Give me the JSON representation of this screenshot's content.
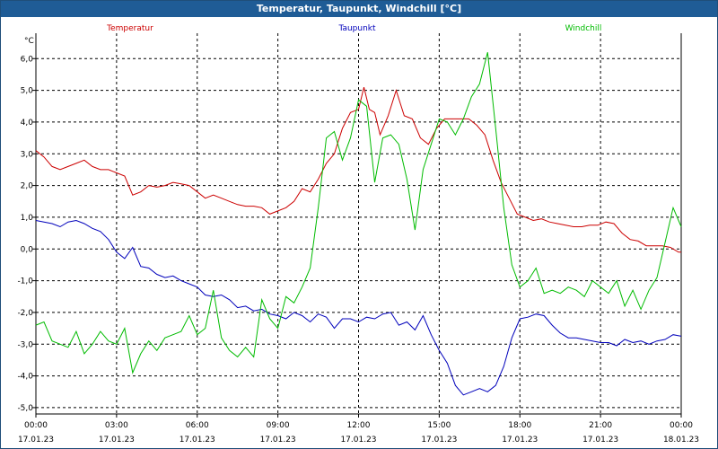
{
  "window": {
    "title": "Temperatur, Taupunkt, Windchill [°C]"
  },
  "chart_data": {
    "type": "line",
    "title": "Temperatur, Taupunkt, Windchill [°C]",
    "ylabel": "°C",
    "xlabel": "",
    "ylim": [
      -5.2,
      6.8
    ],
    "xlim": [
      0,
      24
    ],
    "grid": true,
    "y_ticks": [
      6,
      5,
      4,
      3,
      2,
      1,
      0,
      -1,
      -2,
      -3,
      -4,
      -5
    ],
    "y_tick_labels": [
      "6,0",
      "5,0",
      "4,0",
      "3,0",
      "2,0",
      "1,0",
      "0,0",
      "-1,0",
      "-2,0",
      "-3,0",
      "-4,0",
      "-5,0"
    ],
    "x_ticks": [
      0,
      3,
      6,
      9,
      12,
      15,
      18,
      21,
      24
    ],
    "x_tick_times": [
      "00:00",
      "03:00",
      "06:00",
      "09:00",
      "12:00",
      "15:00",
      "18:00",
      "21:00",
      "00:00"
    ],
    "x_tick_dates": [
      "17.01.23",
      "17.01.23",
      "17.01.23",
      "17.01.23",
      "17.01.23",
      "17.01.23",
      "17.01.23",
      "17.01.23",
      "18.01.23"
    ],
    "series": [
      {
        "name": "Temperatur",
        "color": "#cc0000",
        "x": [
          0,
          0.3,
          0.6,
          0.9,
          1.2,
          1.5,
          1.8,
          2.1,
          2.4,
          2.7,
          3.0,
          3.3,
          3.6,
          3.9,
          4.2,
          4.5,
          4.8,
          5.1,
          5.4,
          5.7,
          6.0,
          6.3,
          6.6,
          6.9,
          7.2,
          7.5,
          7.8,
          8.1,
          8.4,
          8.7,
          9.0,
          9.3,
          9.6,
          9.9,
          10.2,
          10.5,
          10.8,
          11.1,
          11.4,
          11.7,
          12.0,
          12.2,
          12.4,
          12.6,
          12.8,
          13.1,
          13.4,
          13.7,
          14.0,
          14.3,
          14.6,
          14.9,
          15.2,
          15.5,
          15.8,
          16.1,
          16.4,
          16.7,
          17.0,
          17.3,
          17.6,
          17.9,
          18.2,
          18.5,
          18.8,
          19.1,
          19.4,
          19.7,
          20.0,
          20.3,
          20.6,
          20.9,
          21.2,
          21.5,
          21.8,
          22.1,
          22.4,
          22.7,
          23.0,
          23.3,
          23.6,
          23.9,
          24.0
        ],
        "values": [
          3.1,
          2.9,
          2.6,
          2.5,
          2.6,
          2.7,
          2.8,
          2.6,
          2.5,
          2.5,
          2.4,
          2.3,
          1.7,
          1.8,
          2.0,
          1.95,
          2.0,
          2.1,
          2.05,
          2.0,
          1.8,
          1.6,
          1.7,
          1.6,
          1.5,
          1.4,
          1.35,
          1.35,
          1.3,
          1.1,
          1.2,
          1.3,
          1.5,
          1.9,
          1.8,
          2.2,
          2.7,
          3.0,
          3.8,
          4.3,
          4.4,
          5.1,
          4.4,
          4.3,
          3.6,
          4.2,
          5.0,
          4.2,
          4.1,
          3.5,
          3.3,
          3.8,
          4.1,
          4.1,
          4.1,
          4.1,
          3.9,
          3.6,
          2.8,
          2.1,
          1.6,
          1.1,
          1.0,
          0.9,
          0.95,
          0.85,
          0.8,
          0.75,
          0.7,
          0.7,
          0.75,
          0.75,
          0.85,
          0.8,
          0.5,
          0.3,
          0.25,
          0.1,
          0.1,
          0.1,
          0.05,
          -0.1,
          -0.1
        ]
      },
      {
        "name": "Taupunkt",
        "color": "#0000bb",
        "x": [
          0,
          0.3,
          0.6,
          0.9,
          1.2,
          1.5,
          1.8,
          2.1,
          2.4,
          2.7,
          3.0,
          3.3,
          3.6,
          3.9,
          4.2,
          4.5,
          4.8,
          5.1,
          5.4,
          5.7,
          6.0,
          6.3,
          6.6,
          6.9,
          7.2,
          7.5,
          7.8,
          8.1,
          8.4,
          8.7,
          9.0,
          9.3,
          9.6,
          9.9,
          10.2,
          10.5,
          10.8,
          11.1,
          11.4,
          11.7,
          12.0,
          12.3,
          12.6,
          12.9,
          13.2,
          13.5,
          13.8,
          14.1,
          14.4,
          14.7,
          15.0,
          15.3,
          15.6,
          15.9,
          16.2,
          16.5,
          16.8,
          17.1,
          17.4,
          17.7,
          18.0,
          18.3,
          18.6,
          18.9,
          19.2,
          19.5,
          19.8,
          20.1,
          20.4,
          20.7,
          21.0,
          21.3,
          21.6,
          21.9,
          22.2,
          22.5,
          22.8,
          23.1,
          23.4,
          23.7,
          24.0
        ],
        "values": [
          0.9,
          0.85,
          0.8,
          0.7,
          0.85,
          0.9,
          0.8,
          0.65,
          0.55,
          0.3,
          -0.1,
          -0.3,
          0.05,
          -0.55,
          -0.6,
          -0.8,
          -0.9,
          -0.85,
          -1.0,
          -1.1,
          -1.2,
          -1.45,
          -1.5,
          -1.45,
          -1.6,
          -1.85,
          -1.8,
          -1.95,
          -1.9,
          -2.05,
          -2.1,
          -2.2,
          -2.0,
          -2.1,
          -2.3,
          -2.05,
          -2.15,
          -2.5,
          -2.2,
          -2.2,
          -2.3,
          -2.15,
          -2.2,
          -2.05,
          -2.0,
          -2.4,
          -2.3,
          -2.55,
          -2.1,
          -2.7,
          -3.2,
          -3.6,
          -4.3,
          -4.6,
          -4.5,
          -4.4,
          -4.5,
          -4.3,
          -3.7,
          -2.8,
          -2.2,
          -2.15,
          -2.05,
          -2.1,
          -2.4,
          -2.65,
          -2.8,
          -2.8,
          -2.85,
          -2.9,
          -2.95,
          -2.95,
          -3.05,
          -2.85,
          -2.95,
          -2.9,
          -3.0,
          -2.9,
          -2.85,
          -2.7,
          -2.75
        ]
      },
      {
        "name": "Windchill",
        "color": "#00bb00",
        "x": [
          0,
          0.3,
          0.6,
          0.9,
          1.2,
          1.5,
          1.8,
          2.1,
          2.4,
          2.7,
          3.0,
          3.3,
          3.6,
          3.9,
          4.2,
          4.5,
          4.8,
          5.1,
          5.4,
          5.7,
          6.0,
          6.3,
          6.6,
          6.9,
          7.2,
          7.5,
          7.8,
          8.1,
          8.4,
          8.7,
          9.0,
          9.3,
          9.6,
          9.9,
          10.2,
          10.5,
          10.8,
          11.1,
          11.4,
          11.7,
          12.0,
          12.3,
          12.6,
          12.9,
          13.2,
          13.5,
          13.8,
          14.1,
          14.4,
          14.7,
          15.0,
          15.3,
          15.6,
          15.9,
          16.2,
          16.5,
          16.8,
          17.1,
          17.4,
          17.7,
          18.0,
          18.3,
          18.6,
          18.9,
          19.2,
          19.5,
          19.8,
          20.1,
          20.4,
          20.7,
          21.0,
          21.3,
          21.6,
          21.9,
          22.2,
          22.5,
          22.8,
          23.1,
          23.4,
          23.7,
          24.0
        ],
        "values": [
          -2.4,
          -2.3,
          -2.9,
          -3.0,
          -3.1,
          -2.6,
          -3.3,
          -3.0,
          -2.6,
          -2.9,
          -3.0,
          -2.5,
          -3.9,
          -3.3,
          -2.9,
          -3.2,
          -2.8,
          -2.7,
          -2.6,
          -2.1,
          -2.7,
          -2.5,
          -1.3,
          -2.8,
          -3.2,
          -3.4,
          -3.1,
          -3.4,
          -1.6,
          -2.2,
          -2.5,
          -1.5,
          -1.7,
          -1.2,
          -0.6,
          1.3,
          3.5,
          3.7,
          2.8,
          3.5,
          4.7,
          4.5,
          2.1,
          3.5,
          3.6,
          3.3,
          2.2,
          0.6,
          2.5,
          3.3,
          4.1,
          4.0,
          3.6,
          4.1,
          4.8,
          5.2,
          6.2,
          3.8,
          1.3,
          -0.5,
          -1.2,
          -1.0,
          -0.6,
          -1.4,
          -1.3,
          -1.4,
          -1.2,
          -1.3,
          -1.5,
          -1.0,
          -1.2,
          -1.4,
          -1.0,
          -1.8,
          -1.3,
          -1.9,
          -1.3,
          -0.9,
          0.2,
          1.3,
          0.7
        ]
      }
    ]
  }
}
